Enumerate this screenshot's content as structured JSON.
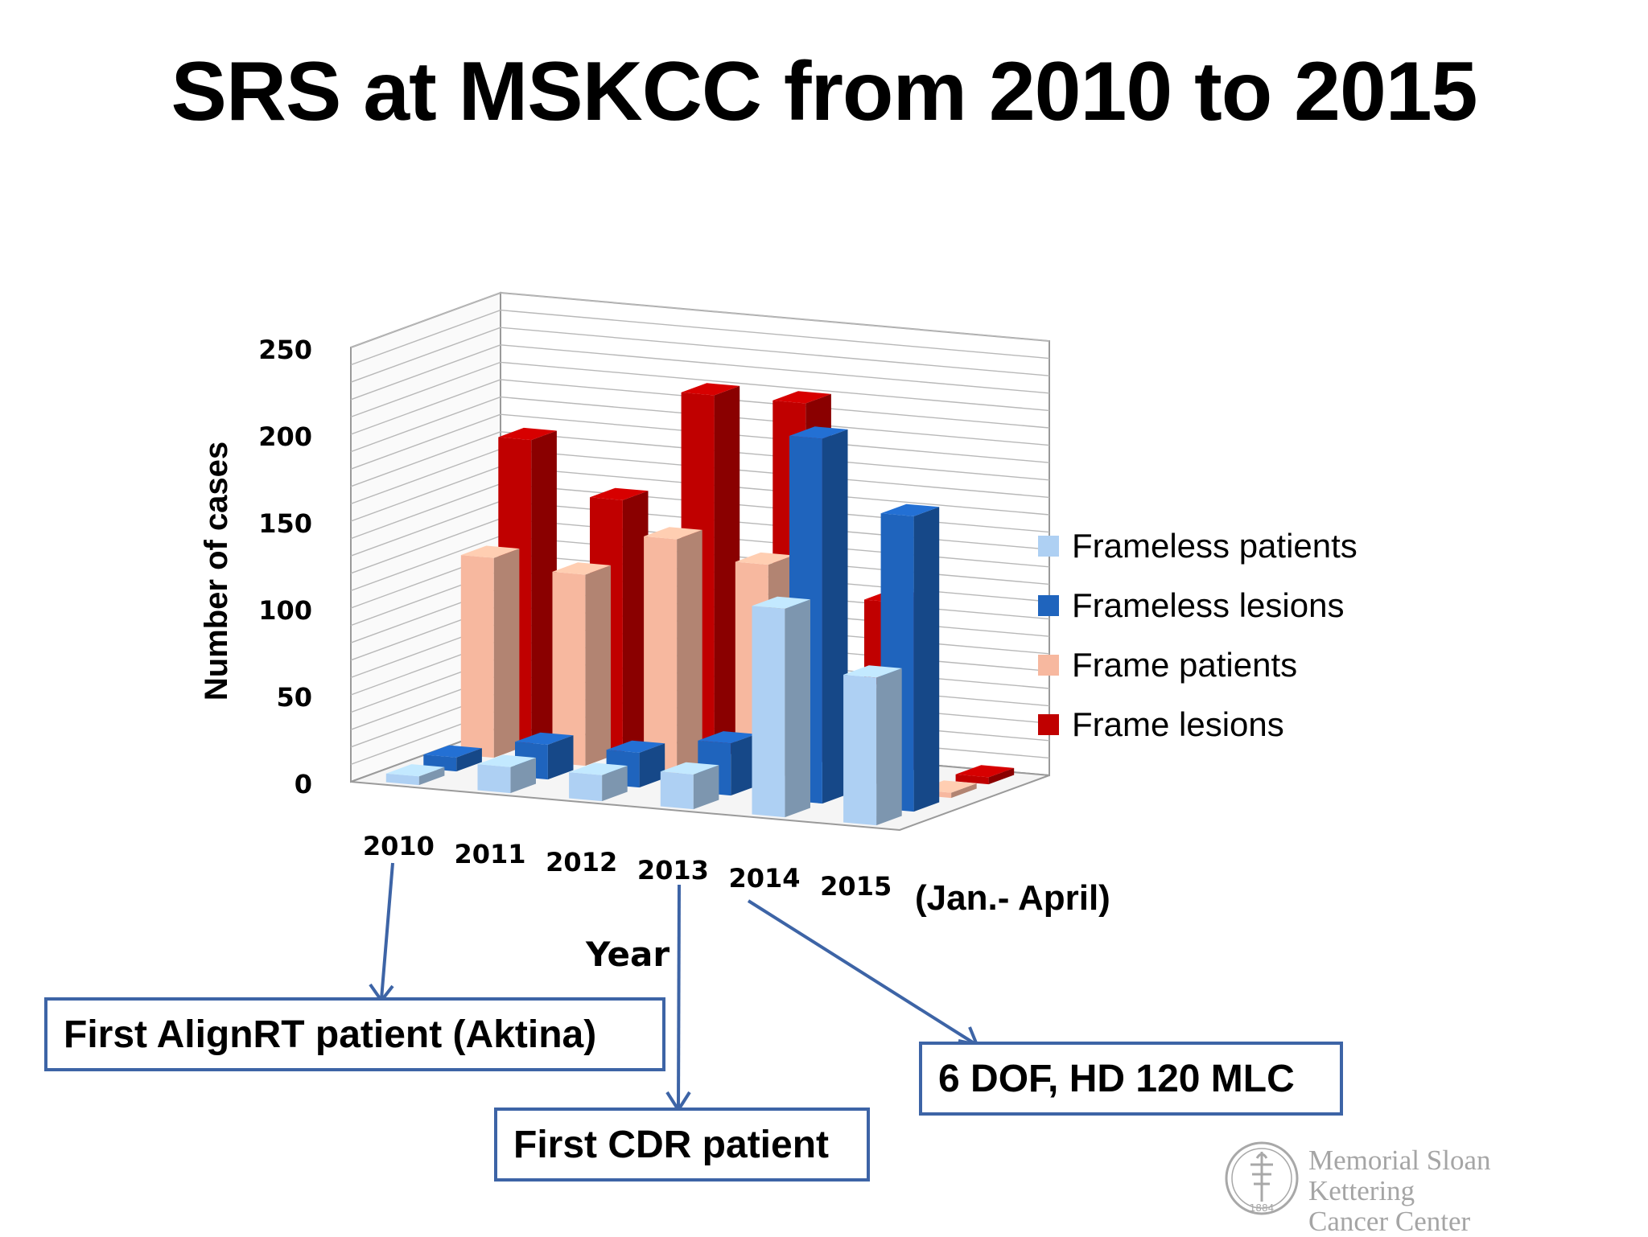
{
  "slide": {
    "title": "SRS at MSKCC from 2010 to 2015",
    "period_note": "(Jan.- April)",
    "callouts": [
      "First AlignRT patient (Aktina)",
      "First CDR patient",
      "6 DOF, HD 120 MLC"
    ],
    "logo": {
      "line1": "Memorial Sloan Kettering",
      "line2": "Cancer Center",
      "seal_text": "1884"
    }
  },
  "colors": {
    "frameless_patients": "#aed0f3",
    "frameless_lesions": "#1f64bd",
    "frame_patients": "#f7b89f",
    "frame_lesions": "#c00000",
    "callout_border": "#3d64a6"
  },
  "chart_data": {
    "type": "bar",
    "subtype": "3d-clustered-columns",
    "categories": [
      "2010",
      "2011",
      "2012",
      "2013",
      "2014",
      "2015"
    ],
    "series": [
      {
        "name": "Frameless patients",
        "values": [
          5,
          15,
          15,
          20,
          120,
          85
        ]
      },
      {
        "name": "Frameless lesions",
        "values": [
          8,
          20,
          20,
          30,
          210,
          170
        ]
      },
      {
        "name": "Frame patients",
        "values": [
          115,
          110,
          135,
          125,
          55,
          3
        ]
      },
      {
        "name": "Frame lesions",
        "values": [
          175,
          145,
          210,
          210,
          100,
          4
        ]
      }
    ],
    "xlabel": "Year",
    "ylabel": "Number of cases",
    "ylim": [
      0,
      250
    ],
    "yticks": [
      "0",
      "50",
      "100",
      "150",
      "200",
      "250"
    ],
    "grid": true,
    "legend_position": "right"
  }
}
